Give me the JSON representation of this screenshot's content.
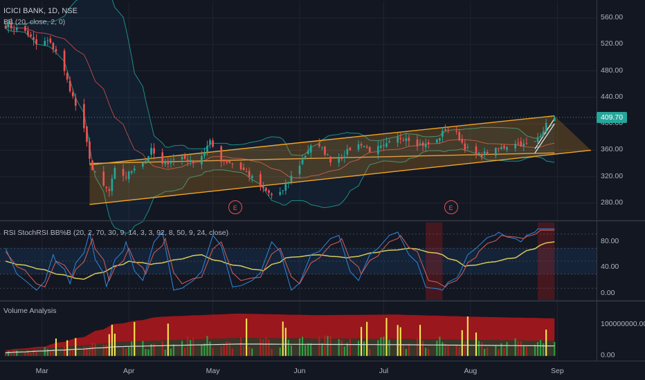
{
  "colors": {
    "background": "#131722",
    "up": "#26a69a",
    "down": "#ef5350",
    "bb_basis": "#b04a4a",
    "bb_band": "#1d8f84",
    "channel": "#f5a623",
    "rsi": "#d7c95b",
    "stoch_k": "#2f7fd1",
    "stoch_d": "#c95a5a",
    "volume_up": "#2ea043",
    "volume_down": "#b22222",
    "volume_high": "#f2e94e",
    "volume_band": "#b3171c",
    "volume_avg": "#e0e0e0",
    "price_tag": "#26a69a"
  },
  "header": {
    "symbol_title": "ICICI BANK, 1D, NSE",
    "bb_label": "BB (20, close, 2, 0)",
    "osc_label": "RSI StochRSI BB%B (20, 2, 70, 30, 9, 14, 3, 3, 92, 8, 50, 9, 24, close)",
    "volume_label": "Volume Analysis"
  },
  "earnings_markers": [
    {
      "date": "2020-05-09",
      "label": "E"
    },
    {
      "date": "2020-07-25",
      "label": "E"
    }
  ],
  "chart_data": [
    {
      "type": "candlestick",
      "title": "ICICI BANK, 1D, NSE",
      "x_axis": {
        "type": "date",
        "range": [
          "2020-02-15",
          "2020-09-15"
        ],
        "ticks": [
          {
            "date": "2020-03-01",
            "label": "Mar"
          },
          {
            "date": "2020-04-01",
            "label": "Apr"
          },
          {
            "date": "2020-05-01",
            "label": "May"
          },
          {
            "date": "2020-06-01",
            "label": "Jun"
          },
          {
            "date": "2020-07-01",
            "label": "Jul"
          },
          {
            "date": "2020-08-01",
            "label": "Aug"
          },
          {
            "date": "2020-09-01",
            "label": "Sep"
          }
        ]
      },
      "y_axis": {
        "range": [
          255,
          585
        ],
        "ticks": [
          "280.00",
          "320.00",
          "360.00",
          "400.00",
          "440.00",
          "480.00",
          "520.00",
          "560.00"
        ]
      },
      "last_price": 409.7,
      "last_price_label": "409.70",
      "price_anchors": [
        [
          "2020-02-17",
          548
        ],
        [
          "2020-02-24",
          540
        ],
        [
          "2020-02-28",
          520
        ],
        [
          "2020-03-03",
          525
        ],
        [
          "2020-03-06",
          510
        ],
        [
          "2020-03-09",
          478
        ],
        [
          "2020-03-12",
          440
        ],
        [
          "2020-03-16",
          390
        ],
        [
          "2020-03-19",
          330
        ],
        [
          "2020-03-23",
          305
        ],
        [
          "2020-03-25",
          298
        ],
        [
          "2020-03-27",
          330
        ],
        [
          "2020-03-31",
          320
        ],
        [
          "2020-04-03",
          335
        ],
        [
          "2020-04-07",
          345
        ],
        [
          "2020-04-09",
          360
        ],
        [
          "2020-04-13",
          338
        ],
        [
          "2020-04-16",
          345
        ],
        [
          "2020-04-20",
          350
        ],
        [
          "2020-04-23",
          342
        ],
        [
          "2020-04-27",
          352
        ],
        [
          "2020-04-30",
          372
        ],
        [
          "2020-05-04",
          345
        ],
        [
          "2020-05-07",
          342
        ],
        [
          "2020-05-12",
          330
        ],
        [
          "2020-05-15",
          318
        ],
        [
          "2020-05-19",
          300
        ],
        [
          "2020-05-22",
          292
        ],
        [
          "2020-05-26",
          298
        ],
        [
          "2020-05-29",
          320
        ],
        [
          "2020-06-02",
          345
        ],
        [
          "2020-06-05",
          368
        ],
        [
          "2020-06-09",
          362
        ],
        [
          "2020-06-12",
          345
        ],
        [
          "2020-06-16",
          350
        ],
        [
          "2020-06-19",
          362
        ],
        [
          "2020-06-23",
          370
        ],
        [
          "2020-06-26",
          360
        ],
        [
          "2020-07-01",
          365
        ],
        [
          "2020-07-06",
          378
        ],
        [
          "2020-07-09",
          380
        ],
        [
          "2020-07-13",
          370
        ],
        [
          "2020-07-16",
          368
        ],
        [
          "2020-07-20",
          375
        ],
        [
          "2020-07-23",
          392
        ],
        [
          "2020-07-27",
          385
        ],
        [
          "2020-07-30",
          365
        ],
        [
          "2020-08-03",
          352
        ],
        [
          "2020-08-06",
          355
        ],
        [
          "2020-08-10",
          360
        ],
        [
          "2020-08-13",
          365
        ],
        [
          "2020-08-17",
          372
        ],
        [
          "2020-08-20",
          368
        ],
        [
          "2020-08-24",
          372
        ],
        [
          "2020-08-26",
          385
        ],
        [
          "2020-08-28",
          398
        ],
        [
          "2020-08-31",
          409.7
        ]
      ],
      "bollinger": {
        "period": 20,
        "mult": 2
      },
      "channel_lines": [
        {
          "from": [
            "2020-03-18",
            338
          ],
          "to": [
            "2020-08-31",
            412
          ]
        },
        {
          "from": [
            "2020-03-18",
            278
          ],
          "to": [
            "2020-09-13",
            360
          ]
        },
        {
          "from": [
            "2020-03-18",
            340
          ],
          "to": [
            "2020-08-31",
            356
          ]
        }
      ],
      "rising_wedge": [
        {
          "from": [
            "2020-08-24",
            362
          ],
          "to": [
            "2020-08-31",
            408
          ]
        },
        {
          "from": [
            "2020-08-24",
            356
          ],
          "to": [
            "2020-08-31",
            400
          ]
        }
      ]
    },
    {
      "type": "line",
      "title": "RSI StochRSI BB%B (20, 2, 70, 30, 9, 14, 3, 3, 92, 8, 50, 9, 24, close)",
      "y_axis": {
        "range": [
          -10,
          110
        ],
        "ticks": [
          "0.00",
          "40.00",
          "80.00"
        ]
      },
      "levels": [
        92,
        70,
        50,
        30,
        8
      ],
      "series": [
        {
          "key": "rsi",
          "anchors": [
            [
              0,
              50
            ],
            [
              8,
              40
            ],
            [
              14,
              30
            ],
            [
              20,
              22
            ],
            [
              26,
              35
            ],
            [
              32,
              50
            ],
            [
              38,
              45
            ],
            [
              44,
              52
            ],
            [
              50,
              60
            ],
            [
              56,
              48
            ],
            [
              62,
              40
            ],
            [
              66,
              35
            ],
            [
              72,
              55
            ],
            [
              80,
              60
            ],
            [
              88,
              55
            ],
            [
              96,
              65
            ],
            [
              104,
              70
            ],
            [
              112,
              60
            ],
            [
              118,
              42
            ],
            [
              124,
              48
            ],
            [
              130,
              55
            ],
            [
              137,
              75
            ],
            [
              140,
              80
            ]
          ]
        },
        {
          "key": "stoch_k",
          "anchors": [
            [
              0,
              70
            ],
            [
              5,
              20
            ],
            [
              9,
              5
            ],
            [
              13,
              60
            ],
            [
              17,
              15
            ],
            [
              22,
              95
            ],
            [
              26,
              10
            ],
            [
              31,
              80
            ],
            [
              35,
              20
            ],
            [
              40,
              95
            ],
            [
              44,
              5
            ],
            [
              49,
              20
            ],
            [
              54,
              90
            ],
            [
              59,
              10
            ],
            [
              64,
              20
            ],
            [
              69,
              80
            ],
            [
              74,
              5
            ],
            [
              79,
              60
            ],
            [
              85,
              90
            ],
            [
              90,
              20
            ],
            [
              95,
              70
            ],
            [
              100,
              95
            ],
            [
              104,
              60
            ],
            [
              108,
              10
            ],
            [
              112,
              5
            ],
            [
              116,
              30
            ],
            [
              120,
              70
            ],
            [
              126,
              95
            ],
            [
              132,
              80
            ],
            [
              136,
              100
            ],
            [
              140,
              100
            ]
          ]
        },
        {
          "key": "stoch_d",
          "anchors": [
            [
              0,
              65
            ],
            [
              6,
              30
            ],
            [
              10,
              10
            ],
            [
              14,
              50
            ],
            [
              18,
              25
            ],
            [
              23,
              85
            ],
            [
              27,
              20
            ],
            [
              32,
              70
            ],
            [
              36,
              30
            ],
            [
              41,
              85
            ],
            [
              45,
              15
            ],
            [
              50,
              25
            ],
            [
              55,
              80
            ],
            [
              60,
              20
            ],
            [
              65,
              25
            ],
            [
              70,
              70
            ],
            [
              75,
              15
            ],
            [
              80,
              55
            ],
            [
              86,
              85
            ],
            [
              91,
              30
            ],
            [
              96,
              65
            ],
            [
              101,
              90
            ],
            [
              105,
              65
            ],
            [
              109,
              20
            ],
            [
              113,
              10
            ],
            [
              117,
              30
            ],
            [
              121,
              65
            ],
            [
              127,
              90
            ],
            [
              133,
              85
            ],
            [
              137,
              98
            ],
            [
              140,
              98
            ]
          ]
        }
      ]
    },
    {
      "type": "bar",
      "title": "Volume Analysis",
      "y_axis": {
        "range": [
          -15000000,
          170000000
        ],
        "ticks": [
          "0.00",
          "100000000.00"
        ]
      },
      "band_anchors": [
        [
          0,
          18000000
        ],
        [
          10,
          30000000
        ],
        [
          20,
          60000000
        ],
        [
          28,
          100000000
        ],
        [
          40,
          125000000
        ],
        [
          60,
          135000000
        ],
        [
          80,
          130000000
        ],
        [
          100,
          132000000
        ],
        [
          120,
          125000000
        ],
        [
          140,
          120000000
        ]
      ],
      "avg_anchors": [
        [
          0,
          10000000
        ],
        [
          20,
          22000000
        ],
        [
          30,
          30000000
        ],
        [
          60,
          38000000
        ],
        [
          100,
          36000000
        ],
        [
          140,
          32000000
        ]
      ]
    }
  ]
}
